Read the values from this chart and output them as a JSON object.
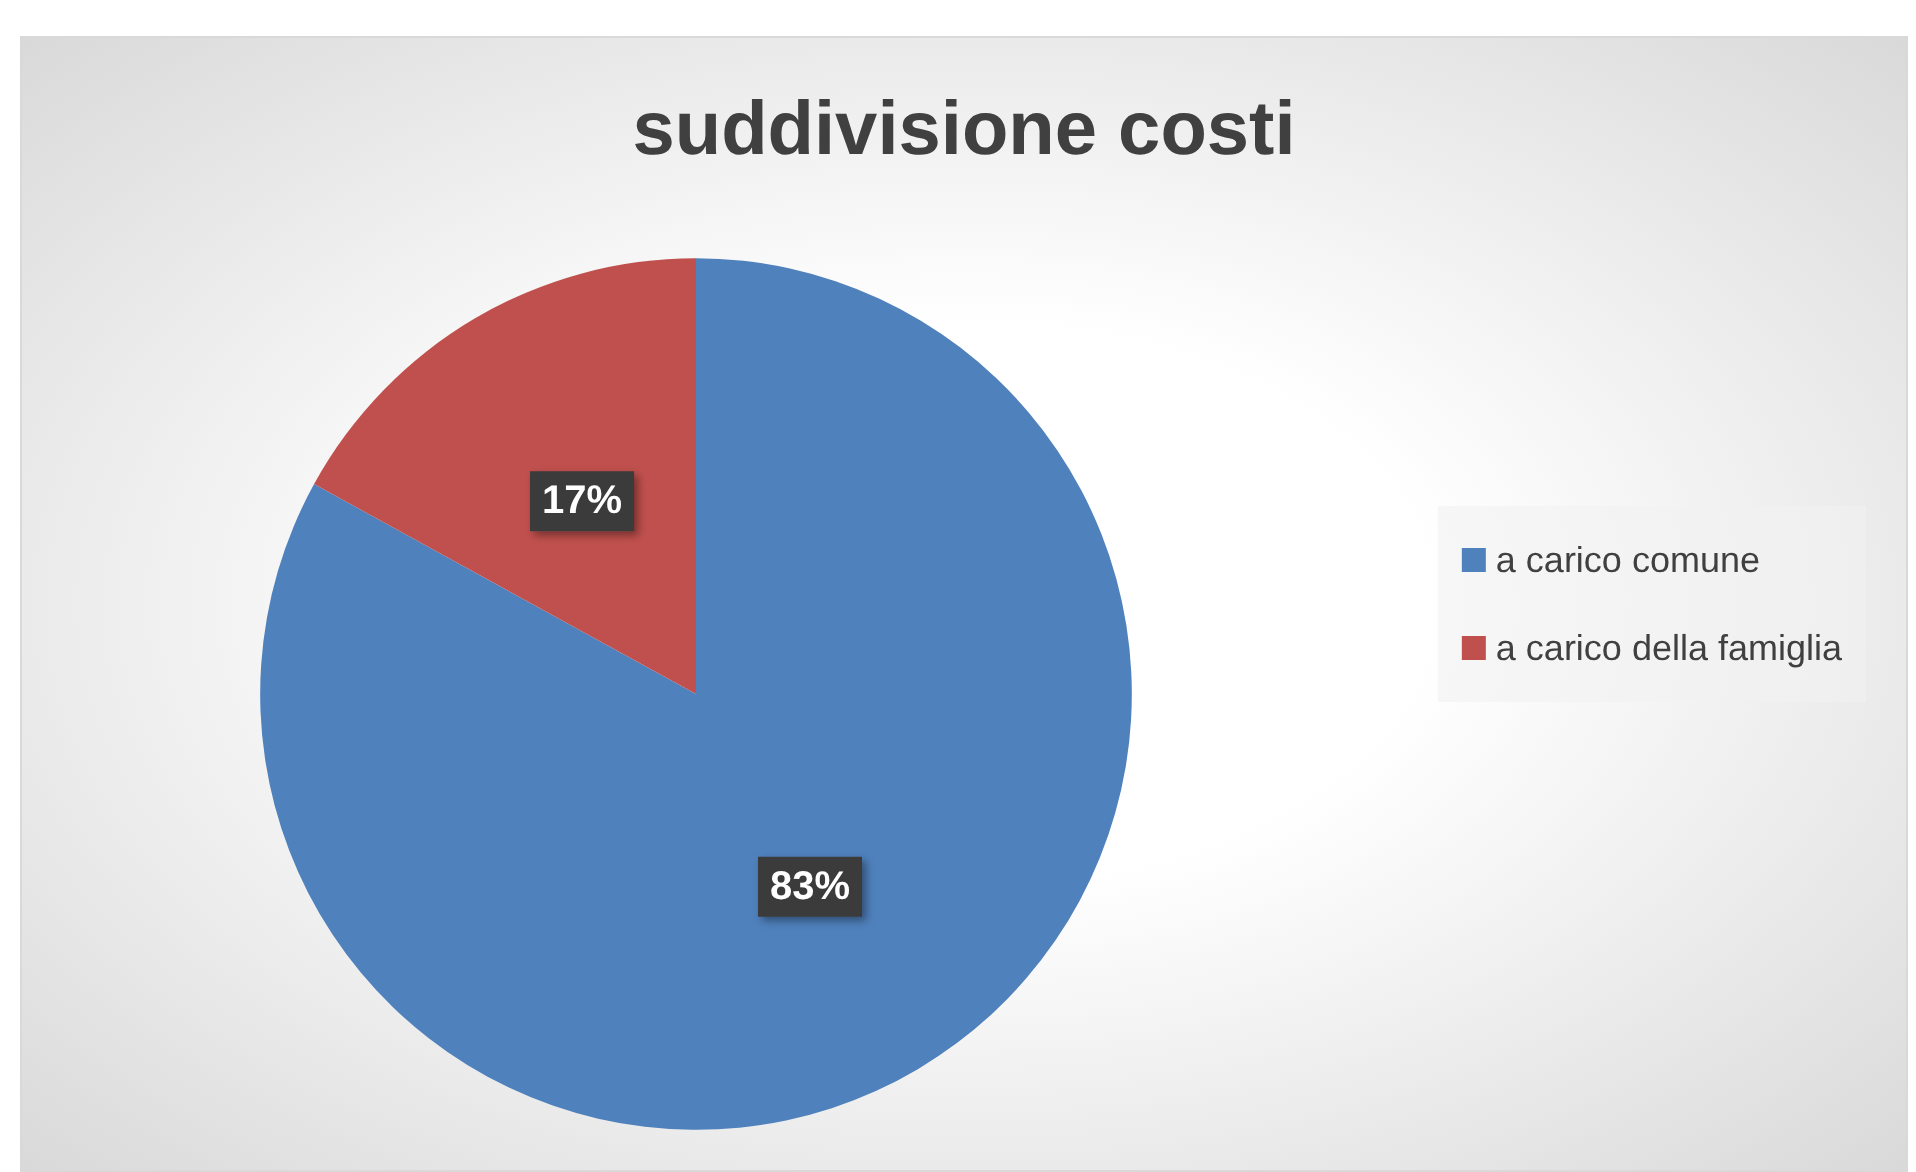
{
  "chart_data": {
    "type": "pie",
    "title": "suddivisione costi",
    "categories": [
      "a carico comune",
      "a carico della famiglia"
    ],
    "values": [
      83,
      17
    ],
    "colors": [
      "#4f81bd",
      "#c0504d"
    ],
    "value_labels": [
      "83%",
      "17%"
    ],
    "legend": "right"
  }
}
